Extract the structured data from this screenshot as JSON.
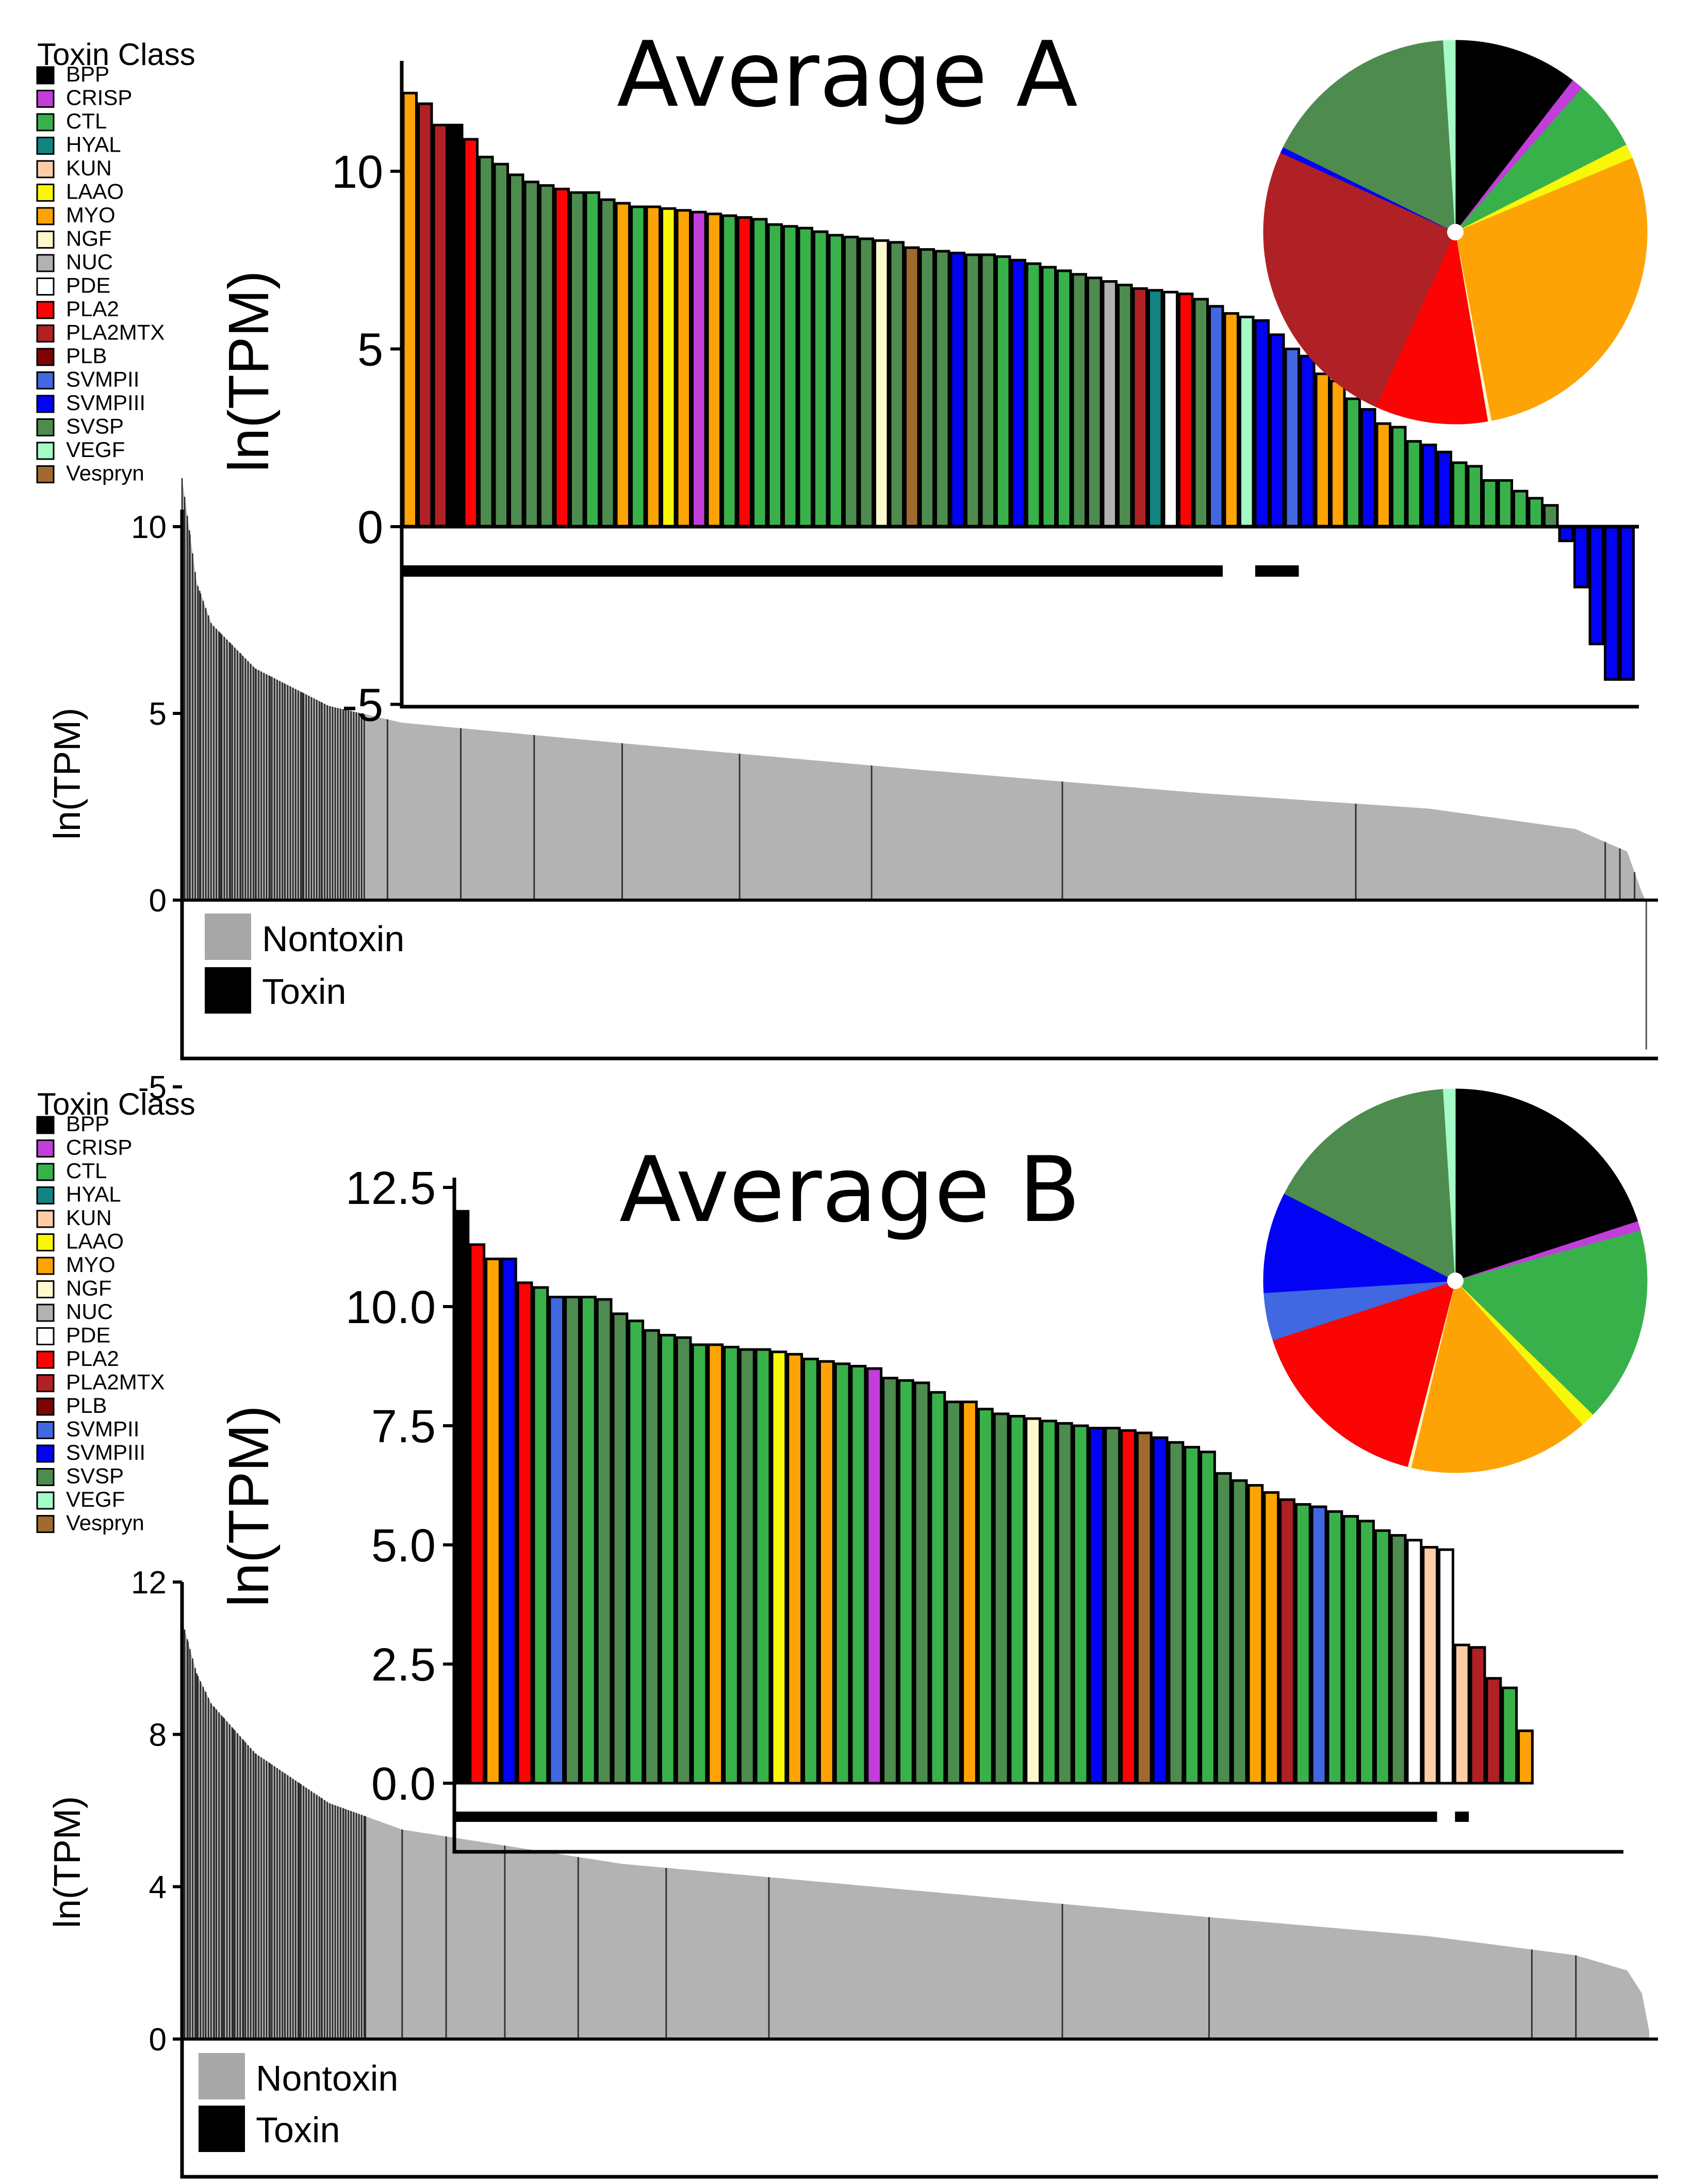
{
  "class_colors": {
    "BPP": "#000000",
    "CRISP": "#C13EDB",
    "CTL": "#39B14A",
    "HYAL": "#138481",
    "KUN": "#FCCDA7",
    "LAAO": "#F8F708",
    "MYO": "#FDA305",
    "NGF": "#FEF8CE",
    "NUC": "#B2B2B2",
    "PDE": "#FFFFFF",
    "PLA2": "#FC0404",
    "PLA2MTX": "#AF2124",
    "PLB": "#7D0405",
    "SVMPII": "#4167E1",
    "SVMPIII": "#0202F5",
    "SVSP": "#4E8B4E",
    "VEGF": "#A5FBC5",
    "Vespryn": "#A06A2E"
  },
  "chart_data": [
    {
      "panel": "A",
      "type": "bar",
      "legend": {
        "title": "Toxin Class",
        "items": [
          "BPP",
          "CRISP",
          "CTL",
          "HYAL",
          "KUN",
          "LAAO",
          "MYO",
          "NGF",
          "NUC",
          "PDE",
          "PLA2",
          "PLA2MTX",
          "PLB",
          "SVMPII",
          "SVMPIII",
          "SVSP",
          "VEGF",
          "Vespryn"
        ]
      },
      "main": {
        "ylabel": "ln(TPM)",
        "ylim": [
          -5,
          12.5
        ],
        "yticks": [
          -5,
          0,
          5,
          10
        ],
        "ytick_labels": [
          "-5",
          "0",
          "5",
          "10"
        ],
        "n_transcripts": 2200,
        "curve": [
          [
            0,
            11.3
          ],
          [
            0.01,
            8.5
          ],
          [
            0.02,
            7.4
          ],
          [
            0.05,
            6.2
          ],
          [
            0.1,
            5.2
          ],
          [
            0.15,
            4.75
          ],
          [
            0.3,
            4.2
          ],
          [
            0.5,
            3.5
          ],
          [
            0.7,
            2.85
          ],
          [
            0.85,
            2.45
          ],
          [
            0.95,
            1.9
          ],
          [
            0.985,
            1.3
          ],
          [
            0.995,
            0.2
          ],
          [
            1,
            -4
          ]
        ],
        "toxin_positions": [
          0.005,
          0.012,
          0.018,
          0.026,
          0.033,
          0.04,
          0.05,
          0.06,
          0.07,
          0.082,
          0.095,
          0.11,
          0.14,
          0.19,
          0.24,
          0.3,
          0.38,
          0.47,
          0.6,
          0.8,
          0.97,
          0.98,
          0.99
        ],
        "legend": [
          {
            "label": "Nontoxin",
            "color": "#A7A7A7"
          },
          {
            "label": "Toxin",
            "color": "#000000"
          }
        ]
      },
      "inset": {
        "title": "Average A",
        "ylabel": "ln(TPM)",
        "ylim": [
          -5,
          13
        ],
        "yticks": [
          -5,
          0,
          5,
          10
        ],
        "ytick_labels": [
          "-5",
          "0",
          "5",
          "10"
        ],
        "values": [
          12.2,
          11.9,
          11.3,
          11.3,
          10.9,
          10.4,
          10.2,
          9.9,
          9.7,
          9.6,
          9.5,
          9.4,
          9.4,
          9.2,
          9.1,
          9.0,
          9.0,
          8.95,
          8.9,
          8.85,
          8.8,
          8.75,
          8.7,
          8.65,
          8.5,
          8.45,
          8.4,
          8.3,
          8.2,
          8.15,
          8.1,
          8.05,
          8.0,
          7.85,
          7.8,
          7.75,
          7.7,
          7.65,
          7.65,
          7.6,
          7.5,
          7.4,
          7.3,
          7.2,
          7.1,
          7.0,
          6.9,
          6.8,
          6.7,
          6.65,
          6.6,
          6.55,
          6.4,
          6.2,
          6.0,
          5.9,
          5.8,
          5.4,
          5.0,
          4.8,
          4.3,
          4.1,
          3.6,
          3.3,
          2.9,
          2.8,
          2.4,
          2.3,
          2.1,
          1.8,
          1.7,
          1.3,
          1.3,
          1.0,
          0.8,
          0.6,
          -0.4,
          -1.7,
          -3.3,
          -4.3,
          -4.3
        ],
        "classes": [
          "MYO",
          "PLA2MTX",
          "PLA2MTX",
          "BPP",
          "PLA2",
          "SVSP",
          "SVSP",
          "SVSP",
          "SVSP",
          "SVSP",
          "PLA2",
          "SVSP",
          "CTL",
          "SVSP",
          "MYO",
          "CTL",
          "MYO",
          "LAAO",
          "MYO",
          "CRISP",
          "MYO",
          "CTL",
          "PLA2",
          "CTL",
          "CTL",
          "CTL",
          "CTL",
          "CTL",
          "CTL",
          "SVSP",
          "SVSP",
          "NGF",
          "SVSP",
          "Vespryn",
          "SVSP",
          "SVSP",
          "SVMPIII",
          "SVSP",
          "SVSP",
          "CTL",
          "SVMPIII",
          "CTL",
          "CTL",
          "CTL",
          "SVSP",
          "SVSP",
          "NUC",
          "SVSP",
          "PLA2MTX",
          "HYAL",
          "PDE",
          "PLA2",
          "SVSP",
          "SVMPII",
          "MYO",
          "VEGF",
          "SVMPIII",
          "SVMPIII",
          "SVMPII",
          "SVMPIII",
          "MYO",
          "MYO",
          "CTL",
          "SVMPIII",
          "MYO",
          "CTL",
          "CTL",
          "SVMPIII",
          "SVMPIII",
          "CTL",
          "CTL",
          "CTL",
          "CTL",
          "CTL",
          "CTL",
          "SVSP",
          "SVMPIII",
          "SVMPIII",
          "SVMPIII",
          "SVMPIII",
          "SVMPIII"
        ],
        "sig_lines": [
          [
            0,
            53
          ],
          [
            56,
            58
          ]
        ],
        "pie": [
          {
            "class": "BPP",
            "value": 0.105
          },
          {
            "class": "CRISP",
            "value": 0.01
          },
          {
            "class": "CTL",
            "value": 0.06
          },
          {
            "class": "LAAO",
            "value": 0.012
          },
          {
            "class": "MYO",
            "value": 0.283
          },
          {
            "class": "NGF",
            "value": 0.003
          },
          {
            "class": "PLA2",
            "value": 0.095
          },
          {
            "class": "PLA2MTX",
            "value": 0.25
          },
          {
            "class": "SVMPIII",
            "value": 0.005
          },
          {
            "class": "SVSP",
            "value": 0.167
          },
          {
            "class": "VEGF",
            "value": 0.01
          }
        ]
      }
    },
    {
      "panel": "B",
      "type": "bar",
      "legend": {
        "title": "Toxin Class",
        "items": [
          "BPP",
          "CRISP",
          "CTL",
          "HYAL",
          "KUN",
          "LAAO",
          "MYO",
          "NGF",
          "NUC",
          "PDE",
          "PLA2",
          "PLA2MTX",
          "PLB",
          "SVMPII",
          "SVMPIII",
          "SVSP",
          "VEGF",
          "Vespryn"
        ]
      },
      "main": {
        "ylabel": "ln(TPM)",
        "ylim": [
          -4.2,
          12.5
        ],
        "yticks": [
          0,
          4,
          8,
          12
        ],
        "ytick_labels": [
          "0",
          "4",
          "8",
          "12"
        ],
        "n_transcripts": 2200,
        "curve": [
          [
            0,
            11.0
          ],
          [
            0.01,
            9.6
          ],
          [
            0.02,
            8.8
          ],
          [
            0.05,
            7.5
          ],
          [
            0.1,
            6.2
          ],
          [
            0.15,
            5.5
          ],
          [
            0.3,
            4.6
          ],
          [
            0.5,
            3.9
          ],
          [
            0.7,
            3.2
          ],
          [
            0.85,
            2.7
          ],
          [
            0.95,
            2.2
          ],
          [
            0.985,
            1.8
          ],
          [
            0.995,
            1.2
          ],
          [
            1,
            0.2
          ]
        ],
        "toxin_positions": [
          0.004,
          0.01,
          0.016,
          0.022,
          0.028,
          0.035,
          0.042,
          0.05,
          0.06,
          0.07,
          0.08,
          0.095,
          0.11,
          0.125,
          0.15,
          0.18,
          0.22,
          0.27,
          0.33,
          0.4,
          0.6,
          0.7,
          0.92,
          0.95
        ],
        "legend": [
          {
            "label": "Nontoxin",
            "color": "#A7A7A7"
          },
          {
            "label": "Toxin",
            "color": "#000000"
          }
        ]
      },
      "inset": {
        "title": "Average B",
        "ylabel": "ln(TPM)",
        "ylim": [
          -0.8,
          13
        ],
        "yticks": [
          0,
          2.5,
          5,
          7.5,
          10,
          12.5
        ],
        "ytick_labels": [
          "0.0",
          "2.5",
          "5.0",
          "7.5",
          "10.0",
          "12.5"
        ],
        "values": [
          12.0,
          11.3,
          11.0,
          11.0,
          10.5,
          10.4,
          10.2,
          10.2,
          10.2,
          10.15,
          9.85,
          9.7,
          9.5,
          9.4,
          9.35,
          9.2,
          9.2,
          9.15,
          9.1,
          9.1,
          9.05,
          9.0,
          8.9,
          8.85,
          8.8,
          8.75,
          8.7,
          8.5,
          8.45,
          8.4,
          8.2,
          8.0,
          8.0,
          7.85,
          7.75,
          7.7,
          7.65,
          7.6,
          7.55,
          7.5,
          7.45,
          7.45,
          7.4,
          7.35,
          7.25,
          7.15,
          7.05,
          6.95,
          6.5,
          6.35,
          6.25,
          6.1,
          5.95,
          5.85,
          5.8,
          5.7,
          5.6,
          5.5,
          5.3,
          5.2,
          5.1,
          4.95,
          4.9,
          2.9,
          2.85,
          2.2,
          2.0,
          1.1
        ],
        "classes": [
          "BPP",
          "PLA2",
          "MYO",
          "SVMPIII",
          "PLA2",
          "CTL",
          "SVMPII",
          "SVSP",
          "CTL",
          "SVSP",
          "SVSP",
          "CTL",
          "SVSP",
          "CTL",
          "SVSP",
          "CTL",
          "MYO",
          "CTL",
          "SVSP",
          "CTL",
          "LAAO",
          "MYO",
          "CTL",
          "MYO",
          "CTL",
          "CTL",
          "CRISP",
          "SVSP",
          "CTL",
          "SVSP",
          "CTL",
          "SVSP",
          "MYO",
          "CTL",
          "SVSP",
          "CTL",
          "NGF",
          "CTL",
          "SVSP",
          "CTL",
          "SVMPIII",
          "SVSP",
          "PLA2",
          "Vespryn",
          "SVMPIII",
          "SVSP",
          "CTL",
          "CTL",
          "SVSP",
          "SVSP",
          "MYO",
          "MYO",
          "PLA2MTX",
          "CTL",
          "SVMPII",
          "CTL",
          "CTL",
          "CTL",
          "CTL",
          "SVSP",
          "PDE",
          "KUN",
          "PDE",
          "KUN",
          "PLA2MTX",
          "PLA2MTX",
          "CTL",
          "MYO"
        ],
        "sig_lines": [
          [
            0,
            61
          ],
          [
            63,
            63
          ]
        ],
        "pie": [
          {
            "class": "BPP",
            "value": 0.2
          },
          {
            "class": "CRISP",
            "value": 0.008
          },
          {
            "class": "CTL",
            "value": 0.165
          },
          {
            "class": "LAAO",
            "value": 0.012
          },
          {
            "class": "MYO",
            "value": 0.152
          },
          {
            "class": "NGF",
            "value": 0.003
          },
          {
            "class": "PLA2",
            "value": 0.16
          },
          {
            "class": "SVMPII",
            "value": 0.04
          },
          {
            "class": "SVMPIII",
            "value": 0.085
          },
          {
            "class": "SVSP",
            "value": 0.165
          },
          {
            "class": "VEGF",
            "value": 0.01
          }
        ]
      }
    }
  ]
}
